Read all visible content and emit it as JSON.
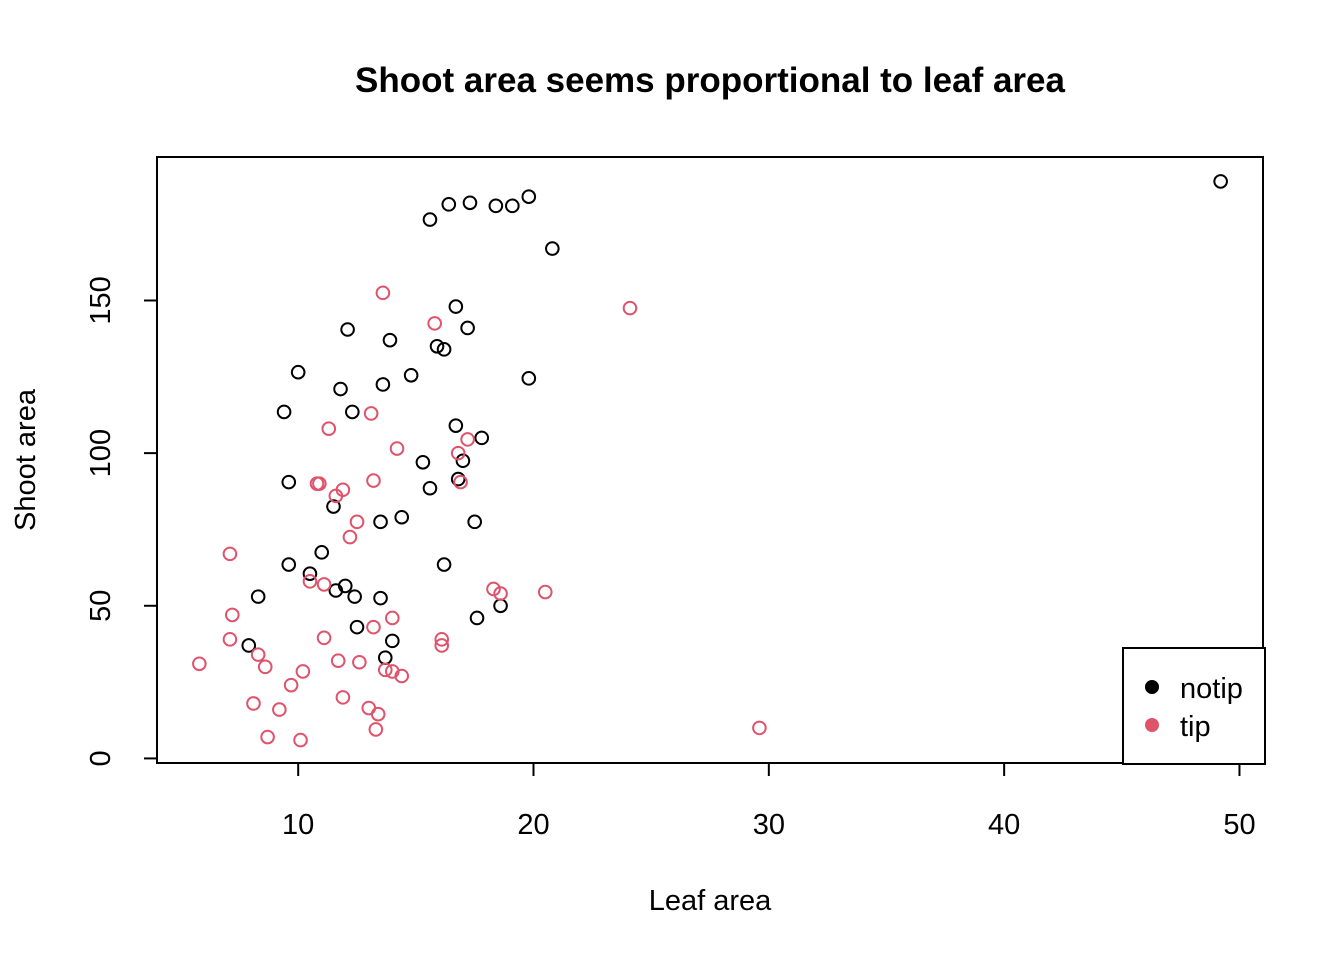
{
  "chart_data": {
    "type": "scatter",
    "title": "Shoot area seems proportional to leaf area",
    "xlabel": "Leaf area",
    "ylabel": "Shoot area",
    "xlim": [
      4,
      51
    ],
    "ylim": [
      -1.5,
      197
    ],
    "xticks": [
      10,
      20,
      30,
      40,
      50
    ],
    "yticks": [
      0,
      50,
      100,
      150
    ],
    "grid": false,
    "legend": {
      "position": "bottom-right",
      "entries": [
        {
          "name": "notip",
          "color": "#000000"
        },
        {
          "name": "tip",
          "color": "#DF536B"
        }
      ]
    },
    "series": [
      {
        "name": "notip",
        "color": "#000000",
        "marker": "open-circle",
        "points": [
          [
            49.2,
            189
          ],
          [
            19.8,
            184
          ],
          [
            17.3,
            182
          ],
          [
            16.4,
            181.5
          ],
          [
            18.4,
            181
          ],
          [
            19.1,
            181
          ],
          [
            15.6,
            176.5
          ],
          [
            20.8,
            167
          ],
          [
            16.7,
            148
          ],
          [
            12.1,
            140.5
          ],
          [
            17.2,
            141
          ],
          [
            13.9,
            137
          ],
          [
            15.9,
            135
          ],
          [
            16.2,
            134
          ],
          [
            10.0,
            126.5
          ],
          [
            14.8,
            125.5
          ],
          [
            19.8,
            124.5
          ],
          [
            11.8,
            121
          ],
          [
            13.6,
            122.5
          ],
          [
            9.4,
            113.5
          ],
          [
            12.3,
            113.5
          ],
          [
            16.7,
            109
          ],
          [
            17.8,
            105
          ],
          [
            15.3,
            97
          ],
          [
            17.0,
            97.5
          ],
          [
            16.8,
            91.5
          ],
          [
            9.6,
            90.5
          ],
          [
            15.6,
            88.5
          ],
          [
            11.5,
            82.5
          ],
          [
            14.4,
            79
          ],
          [
            13.5,
            77.5
          ],
          [
            17.5,
            77.5
          ],
          [
            11.0,
            67.5
          ],
          [
            9.6,
            63.5
          ],
          [
            16.2,
            63.5
          ],
          [
            10.5,
            60.5
          ],
          [
            12.0,
            56.5
          ],
          [
            11.6,
            55
          ],
          [
            8.3,
            53
          ],
          [
            12.4,
            53
          ],
          [
            13.5,
            52.5
          ],
          [
            18.6,
            50
          ],
          [
            17.6,
            46
          ],
          [
            12.5,
            43
          ],
          [
            14.0,
            38.5
          ],
          [
            7.9,
            37
          ],
          [
            13.7,
            33
          ]
        ]
      },
      {
        "name": "tip",
        "color": "#DF536B",
        "marker": "open-circle",
        "points": [
          [
            13.6,
            152.5
          ],
          [
            24.1,
            147.5
          ],
          [
            15.8,
            142.5
          ],
          [
            13.1,
            113
          ],
          [
            11.3,
            108
          ],
          [
            14.2,
            101.5
          ],
          [
            17.2,
            104.5
          ],
          [
            16.8,
            100
          ],
          [
            13.2,
            91
          ],
          [
            16.9,
            90.5
          ],
          [
            10.8,
            90
          ],
          [
            10.9,
            90
          ],
          [
            11.9,
            88
          ],
          [
            11.6,
            86
          ],
          [
            12.5,
            77.5
          ],
          [
            12.2,
            72.5
          ],
          [
            7.1,
            67
          ],
          [
            10.5,
            58
          ],
          [
            11.1,
            57
          ],
          [
            18.3,
            55.5
          ],
          [
            18.6,
            54
          ],
          [
            20.5,
            54.5
          ],
          [
            7.2,
            47
          ],
          [
            14.0,
            46
          ],
          [
            13.2,
            43
          ],
          [
            7.1,
            39
          ],
          [
            11.1,
            39.5
          ],
          [
            16.1,
            39
          ],
          [
            16.1,
            37
          ],
          [
            8.3,
            34
          ],
          [
            5.8,
            31
          ],
          [
            11.7,
            32
          ],
          [
            12.6,
            31.5
          ],
          [
            8.6,
            30
          ],
          [
            13.7,
            29
          ],
          [
            14.0,
            28.5
          ],
          [
            10.2,
            28.5
          ],
          [
            14.4,
            27
          ],
          [
            9.7,
            24
          ],
          [
            11.9,
            20
          ],
          [
            8.1,
            18
          ],
          [
            9.2,
            16
          ],
          [
            13.0,
            16.5
          ],
          [
            13.4,
            14.5
          ],
          [
            29.6,
            10
          ],
          [
            13.3,
            9.5
          ],
          [
            8.7,
            7
          ],
          [
            10.1,
            6
          ]
        ]
      }
    ]
  }
}
